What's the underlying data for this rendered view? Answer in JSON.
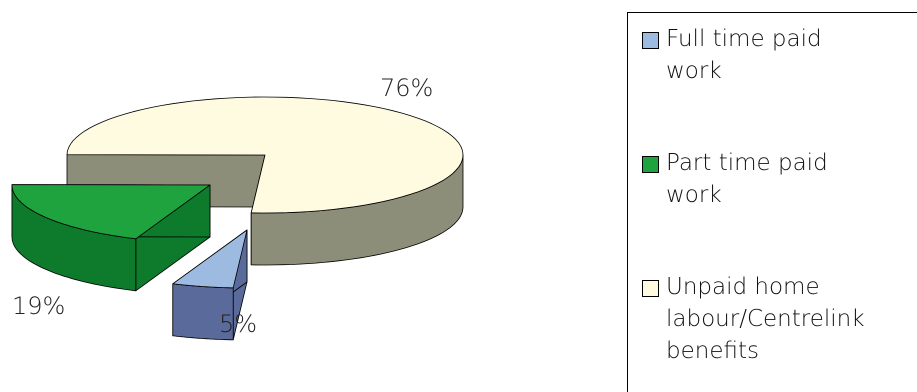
{
  "chart_data": {
    "type": "pie",
    "style": "3d-exploded",
    "categories": [
      "Full time paid work",
      "Part time paid work",
      "Unpaid home labour/Centrelink benefits"
    ],
    "values": [
      5,
      19,
      76
    ],
    "labels": [
      "5%",
      "19%",
      "76%"
    ],
    "colors": [
      "#9dbbe0",
      "#1fa33f",
      "#fffbe1"
    ],
    "side_colors": [
      "#5a6a9a",
      "#0e7a2c",
      "#8d8e7a"
    ],
    "legend_position": "right"
  },
  "legend": {
    "items": [
      {
        "label": "Full time paid work",
        "color": "#9dbbe0"
      },
      {
        "label": "Part time paid work",
        "color": "#1fa33f"
      },
      {
        "label": "Unpaid home labour/Centrelink benefits",
        "color": "#fffbe1"
      }
    ]
  }
}
